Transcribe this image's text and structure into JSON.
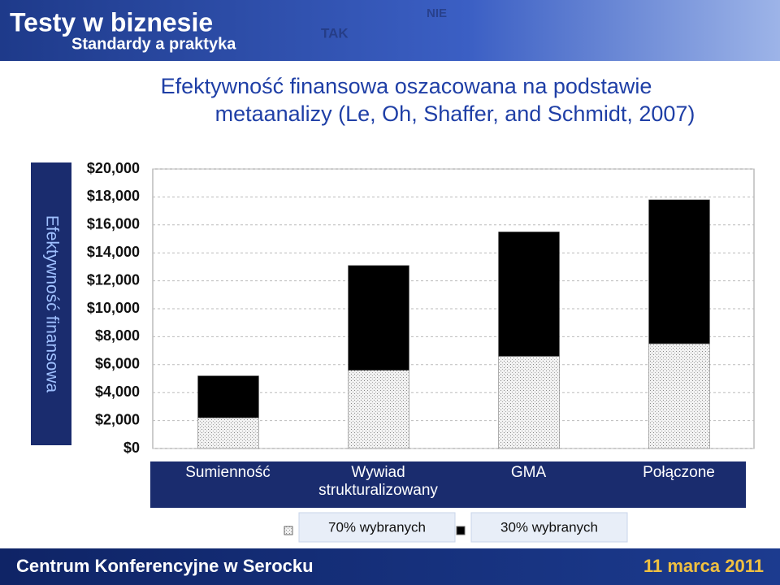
{
  "header": {
    "title": "Testy w biznesie",
    "subtitle": "Standardy a praktyka",
    "stamps": [
      "TAK",
      "NIE"
    ]
  },
  "footer": {
    "left": "Centrum Konferencyjne w Serocku",
    "right": "11 marca 2011"
  },
  "chart_data": {
    "type": "bar",
    "stacked": true,
    "title": [
      "Efektywność finansowa oszacowana na podstawie",
      "metaanalizy (Le, Oh, Shaffer, and Schmidt, 2007)"
    ],
    "y_label": "Efektywność finansowa",
    "categories": [
      "Sumienność",
      "Wywiad strukturalizowany",
      "GMA",
      "Połączone"
    ],
    "series": [
      {
        "name": "70% wybranych",
        "color": "#dcdcdc",
        "values": [
          2200,
          5600,
          6600,
          7500
        ]
      },
      {
        "name": "30% wybranych",
        "color": "#000000",
        "values": [
          3000,
          7500,
          8900,
          10300
        ]
      }
    ],
    "ylim": [
      0,
      20000
    ],
    "yticks": [
      {
        "value": 0,
        "label": "$0"
      },
      {
        "value": 2000,
        "label": "$2,000"
      },
      {
        "value": 4000,
        "label": "$4,000"
      },
      {
        "value": 6000,
        "label": "$6,000"
      },
      {
        "value": 8000,
        "label": "$8,000"
      },
      {
        "value": 10000,
        "label": "$10,000"
      },
      {
        "value": 12000,
        "label": "$12,000"
      },
      {
        "value": 14000,
        "label": "$14,000"
      },
      {
        "value": 16000,
        "label": "$16,000"
      },
      {
        "value": 18000,
        "label": "$18,000"
      },
      {
        "value": 20000,
        "label": "$20,000"
      }
    ],
    "grid": true
  }
}
